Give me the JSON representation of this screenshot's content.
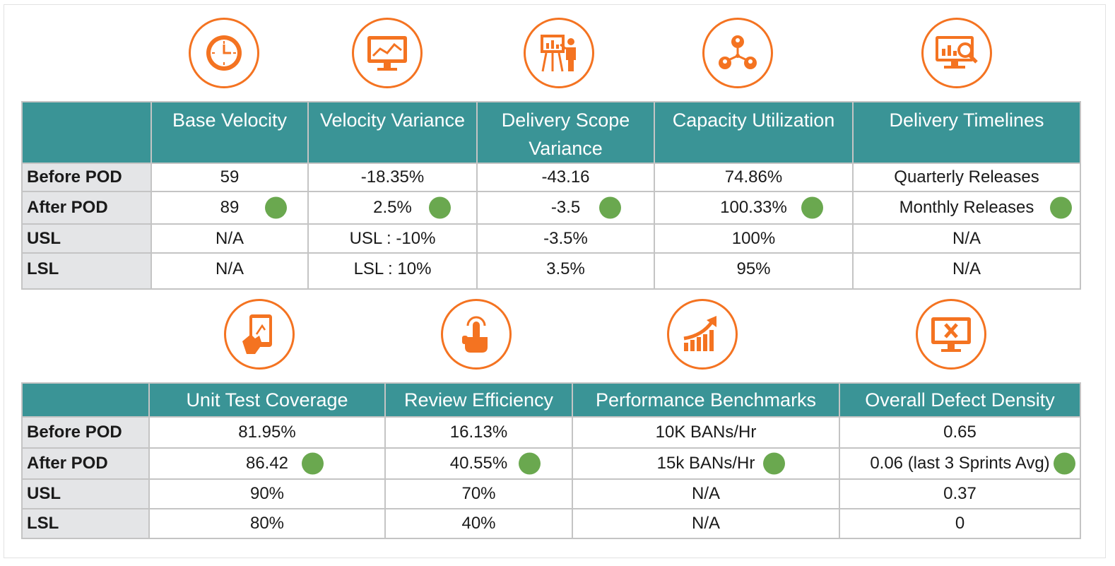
{
  "colors": {
    "header": "#3a9496",
    "icon": "#f47321",
    "good": "#6aa84f",
    "label_bg": "#e4e5e7"
  },
  "row_labels": [
    "Before POD",
    "After POD",
    "USL",
    "LSL"
  ],
  "table1": {
    "icons": [
      "clock-icon",
      "monitor-chart-icon",
      "presentation-icon",
      "network-people-icon",
      "monitor-search-icon"
    ],
    "columns": [
      "Base Velocity",
      "Velocity Variance",
      "Delivery Scope Variance",
      "Capacity Utilization",
      "Delivery Timelines"
    ],
    "before": [
      "59",
      "-18.35%",
      "-43.16",
      "74.86%",
      "Quarterly Releases"
    ],
    "after": [
      "89",
      "2.5%",
      "-3.5",
      "100.33%",
      "Monthly Releases"
    ],
    "usl": [
      "N/A",
      "USL : -10%",
      "-3.5%",
      "100%",
      "N/A"
    ],
    "lsl": [
      "N/A",
      "LSL : 10%",
      "3.5%",
      "95%",
      "N/A"
    ]
  },
  "table2": {
    "icons": [
      "tablet-touch-icon",
      "tap-finger-icon",
      "growth-chart-icon",
      "monitor-defect-icon"
    ],
    "columns": [
      "Unit Test Coverage",
      "Review Efficiency",
      "Performance Benchmarks",
      "Overall Defect Density"
    ],
    "before": [
      "81.95%",
      "16.13%",
      "10K BANs/Hr",
      "0.65"
    ],
    "after": [
      "86.42",
      "40.55%",
      "15k BANs/Hr",
      "0.06 (last 3 Sprints Avg)"
    ],
    "usl": [
      "90%",
      "70%",
      "N/A",
      "0.37"
    ],
    "lsl": [
      "80%",
      "40%",
      "N/A",
      "0"
    ]
  }
}
